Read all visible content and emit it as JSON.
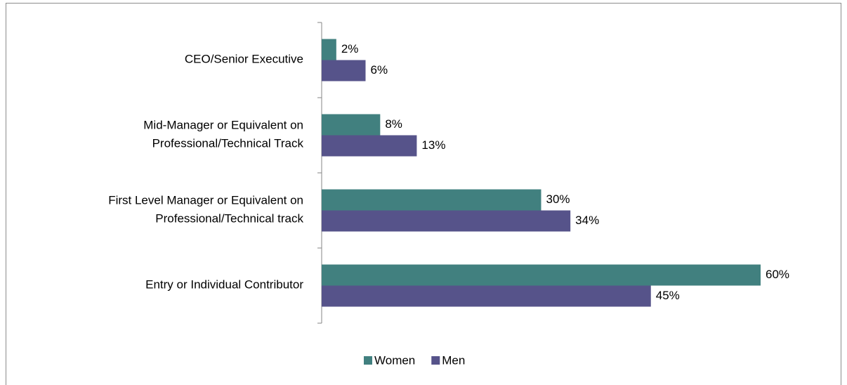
{
  "chart_data": {
    "type": "hbar",
    "categories": [
      "CEO/Senior Executive",
      "Mid-Manager or Equivalent on\nProfessional/Technical Track",
      "First Level Manager or Equivalent on\nProfessional/Technical track",
      "Entry or Individual Contributor"
    ],
    "series": [
      {
        "name": "Women",
        "color": "#41807f",
        "values": [
          2,
          8,
          30,
          60
        ],
        "value_labels": [
          "2%",
          "8%",
          "30%",
          "60%"
        ]
      },
      {
        "name": "Men",
        "color": "#56538a",
        "values": [
          6,
          13,
          34,
          45
        ],
        "value_labels": [
          "6%",
          "13%",
          "34%",
          "45%"
        ]
      }
    ],
    "legend": "bottom"
  }
}
